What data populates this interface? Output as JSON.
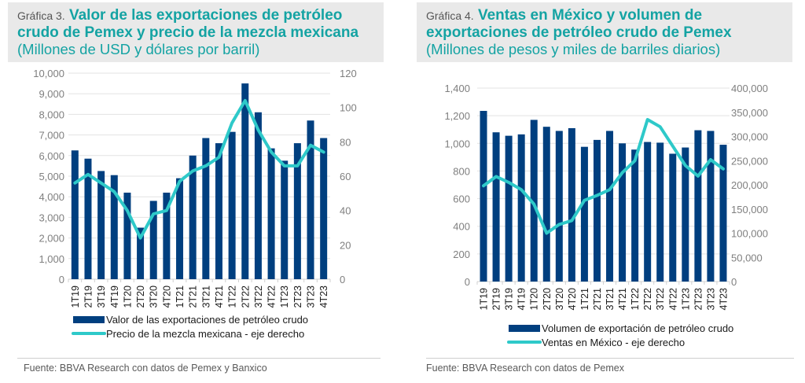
{
  "colors": {
    "bar": "#003f7f",
    "line": "#2ec9c9",
    "title": "#14a3a3",
    "grid": "#e3e3e3",
    "axis_text": "#7f7f7f",
    "title_bg": "#e9e9e9"
  },
  "panels": [
    {
      "prefix": "Gráfica 3.",
      "title": "Valor de las exportaciones de petróleo crudo de Pemex y precio de la mezcla mexicana",
      "subtitle": "(Millones de USD y dólares por barril)",
      "source": "Fuente: BBVA Research con datos de Pemex y Banxico"
    },
    {
      "prefix": "Gráfica 4.",
      "title": "Ventas en México y volumen de exportaciones de petróleo crudo de Pemex",
      "subtitle": "(Millones de pesos y miles de barriles diarios)",
      "source": "Fuente: BBVA Research con datos de Pemex"
    }
  ],
  "chart_data": [
    {
      "type": "bar",
      "title": "Valor de las exportaciones de petróleo crudo de Pemex y precio de la mezcla mexicana",
      "categories": [
        "1T19",
        "2T19",
        "3T19",
        "4T19",
        "1T20",
        "2T20",
        "3T20",
        "4T20",
        "1T21",
        "2T21",
        "3T21",
        "4T21",
        "1T22",
        "2T22",
        "3T22",
        "4T22",
        "1T23",
        "2T23",
        "3T23",
        "4T23"
      ],
      "series": [
        {
          "name": "Valor de las exportaciones de petróleo crudo",
          "type": "bar",
          "axis": "left",
          "values": [
            6250,
            5850,
            5250,
            5050,
            4200,
            2500,
            3800,
            4200,
            4900,
            6000,
            6850,
            6600,
            7150,
            9500,
            8100,
            6350,
            5750,
            6600,
            7700,
            6850
          ]
        },
        {
          "name": "Precio de la mezcla mexicana - eje derecho",
          "type": "line",
          "axis": "right",
          "values": [
            56,
            61,
            56,
            51,
            40,
            24,
            38,
            40,
            57,
            63,
            66,
            71,
            91,
            104,
            87,
            74,
            66,
            66,
            78,
            74
          ]
        }
      ],
      "ylim": [
        0,
        10000
      ],
      "y_ticks": [
        0,
        1000,
        2000,
        3000,
        4000,
        5000,
        6000,
        7000,
        8000,
        9000,
        10000
      ],
      "y_tick_labels": [
        "0",
        "1,000",
        "2,000",
        "3,000",
        "4,000",
        "5,000",
        "6,000",
        "7,000",
        "8,000",
        "9,000",
        "10,000"
      ],
      "y2lim": [
        0,
        120
      ],
      "y2_ticks": [
        0,
        20,
        40,
        60,
        80,
        100,
        120
      ],
      "y2_tick_labels": [
        "0",
        "20",
        "40",
        "60",
        "80",
        "100",
        "120"
      ],
      "grid": true,
      "legend_position": "bottom"
    },
    {
      "type": "bar",
      "title": "Ventas en México y volumen de exportaciones de petróleo crudo de Pemex",
      "categories": [
        "1T19",
        "2T19",
        "3T19",
        "4T19",
        "1T20",
        "2T20",
        "3T20",
        "4T20",
        "1T21",
        "2T21",
        "3T21",
        "4T21",
        "1T22",
        "2T22",
        "3T22",
        "4T22",
        "1T23",
        "2T23",
        "3T23",
        "4T23"
      ],
      "series": [
        {
          "name": "Volumen de exportación de petróleo crudo",
          "type": "bar",
          "axis": "left",
          "values": [
            1235,
            1080,
            1055,
            1065,
            1170,
            1120,
            1090,
            1110,
            975,
            1025,
            1090,
            1000,
            955,
            1010,
            1005,
            925,
            970,
            1095,
            1090,
            990
          ]
        },
        {
          "name": "Ventas en México - eje derecho",
          "type": "line",
          "axis": "right",
          "values": [
            198000,
            217000,
            205000,
            190000,
            160000,
            100000,
            118000,
            126000,
            168000,
            178000,
            190000,
            225000,
            250000,
            335000,
            320000,
            280000,
            240000,
            218000,
            252000,
            233000
          ]
        }
      ],
      "ylim": [
        0,
        1400
      ],
      "y_ticks": [
        0,
        200,
        400,
        600,
        800,
        1000,
        1200,
        1400
      ],
      "y_tick_labels": [
        "0",
        "200",
        "400",
        "600",
        "800",
        "1,000",
        "1,200",
        "1,400"
      ],
      "y2lim": [
        0,
        400000
      ],
      "y2_ticks": [
        0,
        50000,
        100000,
        150000,
        200000,
        250000,
        300000,
        350000,
        400000
      ],
      "y2_tick_labels": [
        "0",
        "50,000",
        "100,000",
        "150,000",
        "200,000",
        "250,000",
        "300,000",
        "350,000",
        "400,000"
      ],
      "grid": true,
      "legend_position": "bottom"
    }
  ]
}
